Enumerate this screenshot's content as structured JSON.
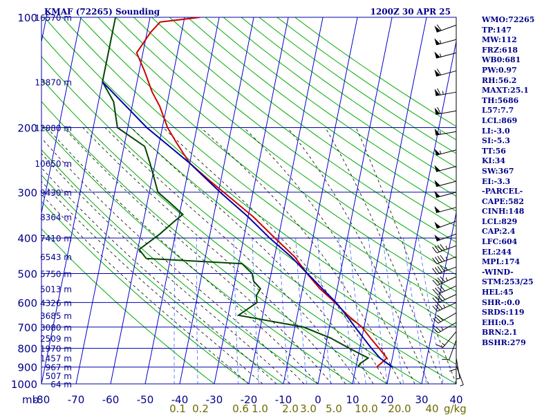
{
  "chart_data": {
    "type": "skew-t",
    "title_left": "KMAF (72265) Sounding",
    "title_right": "1200Z 30 APR 25",
    "pressure_levels": [
      100,
      200,
      300,
      400,
      500,
      600,
      700,
      800,
      900,
      1000
    ],
    "pressure_labels": [
      "100",
      "200",
      "300",
      "400",
      "500",
      "600",
      "700",
      "800",
      "900",
      "1000"
    ],
    "pressure_unit": "mb",
    "x_ticks": [
      "-80",
      "-70",
      "-60",
      "-50",
      "-40",
      "-30",
      "-20",
      "-10",
      "0",
      "10",
      "20",
      "30",
      "40"
    ],
    "x_tick_values": [
      -80,
      -70,
      -60,
      -50,
      -40,
      -30,
      -20,
      -10,
      0,
      10,
      20,
      30,
      40
    ],
    "mixing_ratio_labels": [
      "0.1",
      "0.2",
      "0.6",
      "1.0",
      "2.0",
      "3.0",
      "5.0",
      "10.0",
      "20.0",
      "40"
    ],
    "mixing_ratio_unit": "g/kg",
    "height_labels": [
      {
        "p": 100,
        "text": "16570 m"
      },
      {
        "p": 150,
        "text": "13870 m"
      },
      {
        "p": 200,
        "text": "12080 m"
      },
      {
        "p": 250,
        "text": "10650 m"
      },
      {
        "p": 300,
        "text": "9430 m"
      },
      {
        "p": 350,
        "text": "8364 m"
      },
      {
        "p": 400,
        "text": "7410 m"
      },
      {
        "p": 450,
        "text": "6543 m"
      },
      {
        "p": 500,
        "text": "5750 m"
      },
      {
        "p": 550,
        "text": "5013 m"
      },
      {
        "p": 600,
        "text": "4326 m"
      },
      {
        "p": 650,
        "text": "3685 m"
      },
      {
        "p": 700,
        "text": "3080 m"
      },
      {
        "p": 750,
        "text": "2509 m"
      },
      {
        "p": 800,
        "text": "1970 m"
      },
      {
        "p": 850,
        "text": "1457 m"
      },
      {
        "p": 900,
        "text": "967 m"
      },
      {
        "p": 950,
        "text": "507 m"
      },
      {
        "p": 1000,
        "text": "64 m"
      }
    ],
    "series": [
      {
        "name": "Temperature",
        "color": "#cc0000",
        "points": [
          [
            100,
            -55.5
          ],
          [
            103,
            -66.8
          ],
          [
            110,
            -69
          ],
          [
            125,
            -71.8
          ],
          [
            140,
            -68.5
          ],
          [
            160,
            -65
          ],
          [
            175,
            -62
          ],
          [
            200,
            -58.5
          ],
          [
            220,
            -55
          ],
          [
            250,
            -50
          ],
          [
            280,
            -43
          ],
          [
            300,
            -38.5
          ],
          [
            350,
            -28.5
          ],
          [
            400,
            -21
          ],
          [
            425,
            -17.5
          ],
          [
            450,
            -14.2
          ],
          [
            500,
            -9.6
          ],
          [
            550,
            -5
          ],
          [
            600,
            0.2
          ],
          [
            650,
            4.6
          ],
          [
            700,
            9.4
          ],
          [
            750,
            12.5
          ],
          [
            800,
            15.6
          ],
          [
            850,
            18.4
          ],
          [
            880,
            17
          ],
          [
            900,
            16
          ]
        ]
      },
      {
        "name": "Dewpoint",
        "color": "#004400",
        "points": [
          [
            100,
            -80
          ],
          [
            103,
            -80
          ],
          [
            150,
            -80
          ],
          [
            170,
            -75.6
          ],
          [
            200,
            -73
          ],
          [
            225,
            -64
          ],
          [
            250,
            -61.5
          ],
          [
            300,
            -57.5
          ],
          [
            320,
            -53.5
          ],
          [
            345,
            -49
          ],
          [
            360,
            -51
          ],
          [
            390,
            -54.5
          ],
          [
            430,
            -59.6
          ],
          [
            455,
            -57
          ],
          [
            470,
            -29
          ],
          [
            500,
            -25.5
          ],
          [
            525,
            -24.6
          ],
          [
            550,
            -22.2
          ],
          [
            575,
            -23
          ],
          [
            600,
            -22.4
          ],
          [
            650,
            -27
          ],
          [
            700,
            -7.5
          ],
          [
            750,
            1
          ],
          [
            800,
            7
          ],
          [
            850,
            13
          ],
          [
            880,
            11
          ],
          [
            900,
            10.6
          ]
        ]
      },
      {
        "name": "Parcel",
        "color": "#0000aa",
        "points": [
          [
            150,
            -80
          ],
          [
            200,
            -64.5
          ],
          [
            250,
            -50
          ],
          [
            300,
            -39.5
          ],
          [
            350,
            -30
          ],
          [
            400,
            -22.5
          ],
          [
            450,
            -15.2
          ],
          [
            500,
            -9.5
          ],
          [
            550,
            -4.3
          ],
          [
            600,
            0.5
          ],
          [
            650,
            4.2
          ],
          [
            700,
            7.4
          ],
          [
            750,
            10.5
          ],
          [
            800,
            13.4
          ],
          [
            850,
            16.4
          ],
          [
            900,
            20.5
          ]
        ]
      }
    ],
    "indices": [
      "WMO:72265",
      "TP:147",
      "MW:112",
      "FRZ:618",
      "WB0:681",
      "PW:0.97",
      "RH:56.2",
      "MAXT:25.1",
      "TH:5686",
      "L57:7.7",
      "LCL:869",
      "LI:-3.0",
      "SI:-5.3",
      "TT:56",
      "KI:34",
      "SW:367",
      "EI:-3.3",
      "-PARCEL-",
      "CAPE:582",
      "CINH:148",
      "LCL:829",
      "CAP:2.4",
      "LFC:604",
      "EL:244",
      "MPL:174",
      "-WIND-",
      "STM:253/25",
      "HEL:45",
      "SHR-:0.0",
      "SRDS:119",
      "EHI:0.5",
      "BRN:2.1",
      "BSHR:279"
    ],
    "wind_profile": {
      "pressures": [
        105,
        115,
        125,
        140,
        160,
        180,
        205,
        230,
        255,
        280,
        300,
        330,
        360,
        390,
        420,
        450,
        480,
        510,
        540,
        570,
        600,
        640,
        680,
        720,
        760,
        800,
        850,
        890
      ],
      "directions": [
        250,
        255,
        255,
        255,
        260,
        260,
        260,
        255,
        255,
        255,
        255,
        255,
        250,
        250,
        250,
        250,
        250,
        245,
        245,
        245,
        245,
        240,
        240,
        220,
        200,
        180,
        170,
        160
      ],
      "speeds": [
        60,
        55,
        55,
        60,
        65,
        60,
        55,
        55,
        50,
        50,
        50,
        50,
        50,
        50,
        45,
        45,
        45,
        45,
        40,
        40,
        35,
        30,
        25,
        15,
        10,
        10,
        5,
        5
      ]
    },
    "colors": {
      "isobar": "#0000aa",
      "isotherm": "#0000cc",
      "dry_adiabat": "#00aa00",
      "moist_adiabat": "#000000",
      "mixing_ratio": "#3366ff",
      "label": "#00008b",
      "mixing_label": "#6b6b00",
      "wind": "#000000"
    }
  }
}
